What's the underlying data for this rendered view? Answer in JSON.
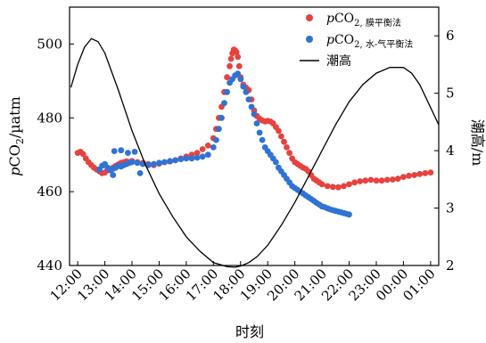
{
  "chart_data": {
    "type": "scatter",
    "xlabel": "时刻",
    "ylabel_left": "pCO2/µatm",
    "ylabel_right": "潮高/m",
    "ylim_left": [
      440,
      510
    ],
    "yticks_left": [
      440,
      460,
      480,
      500
    ],
    "ylim_right": [
      2,
      6.5
    ],
    "yticks_right": [
      2,
      3,
      4,
      5,
      6
    ],
    "xlim": [
      11.7,
      25.3
    ],
    "x_ticks": [
      12,
      13,
      14,
      15,
      16,
      17,
      18,
      19,
      20,
      21,
      22,
      23,
      24,
      25
    ],
    "x_tick_labels": [
      "12:00",
      "13:00",
      "14:00",
      "15:00",
      "16:00",
      "17:00",
      "18:00",
      "19:00",
      "20:00",
      "21:00",
      "22:00",
      "23:00",
      "00:00",
      "01:00"
    ],
    "legend_position": "top-right",
    "series": [
      {
        "name": "pCO2, 膜平衡法",
        "legend_main": "pCO",
        "legend_sub": "2, 膜平衡法",
        "kind": "scatter",
        "color": "#e8423f",
        "x": [
          12.0,
          12.1,
          12.2,
          12.3,
          12.4,
          12.5,
          12.6,
          12.7,
          12.8,
          12.9,
          13.0,
          13.1,
          13.2,
          13.3,
          13.4,
          13.5,
          13.6,
          13.7,
          13.8,
          13.9,
          14.0,
          14.2,
          14.4,
          14.6,
          14.8,
          15.0,
          15.2,
          15.4,
          15.6,
          15.8,
          16.0,
          16.2,
          16.4,
          16.6,
          16.8,
          17.0,
          17.1,
          17.2,
          17.3,
          17.4,
          17.5,
          17.6,
          17.65,
          17.7,
          17.75,
          17.8,
          17.85,
          17.9,
          17.95,
          18.0,
          18.1,
          18.2,
          18.3,
          18.4,
          18.5,
          18.6,
          18.7,
          18.8,
          18.9,
          19.0,
          19.1,
          19.2,
          19.3,
          19.4,
          19.5,
          19.6,
          19.7,
          19.8,
          19.9,
          20.0,
          20.1,
          20.2,
          20.3,
          20.4,
          20.5,
          20.6,
          20.7,
          20.8,
          20.9,
          21.0,
          21.2,
          21.4,
          21.6,
          21.8,
          22.0,
          22.2,
          22.4,
          22.6,
          22.8,
          23.0,
          23.2,
          23.4,
          23.6,
          23.8,
          24.0,
          24.2,
          24.4,
          24.6,
          24.8,
          25.0
        ],
        "y": [
          470.5,
          470.8,
          470.2,
          469.0,
          468.0,
          467.2,
          466.5,
          466.0,
          465.5,
          465.0,
          465.2,
          465.8,
          466.0,
          466.5,
          467.0,
          467.4,
          467.8,
          468.0,
          468.2,
          468.0,
          468.3,
          468.0,
          467.8,
          467.5,
          467.2,
          467.6,
          468.0,
          468.2,
          468.5,
          469.0,
          469.5,
          470.0,
          470.5,
          471.5,
          472.5,
          474.5,
          477.0,
          480.0,
          483.0,
          487.0,
          491.0,
          494.0,
          496.0,
          497.5,
          498.5,
          498.3,
          497.8,
          496.5,
          494.0,
          491.0,
          489.0,
          488.2,
          487.5,
          485.0,
          482.0,
          480.5,
          479.8,
          479.3,
          479.0,
          479.2,
          479.0,
          478.5,
          477.5,
          476.5,
          475.0,
          473.5,
          472.0,
          470.5,
          469.0,
          468.0,
          467.5,
          467.0,
          466.5,
          466.2,
          465.5,
          464.5,
          463.5,
          463.0,
          462.5,
          462.0,
          461.5,
          461.3,
          461.2,
          461.5,
          462.0,
          462.5,
          462.8,
          463.0,
          463.2,
          463.0,
          463.0,
          463.2,
          463.3,
          463.5,
          464.0,
          464.3,
          464.5,
          464.8,
          465.0,
          465.2
        ]
      },
      {
        "name": "pCO2, 水-气平衡法",
        "legend_main": "pCO",
        "legend_sub": "2, 水-气平衡法",
        "kind": "scatter",
        "color": "#2f73d4",
        "x": [
          12.8,
          12.9,
          13.0,
          13.1,
          13.2,
          13.3,
          13.4,
          13.5,
          13.6,
          13.7,
          13.8,
          13.9,
          14.0,
          14.2,
          14.4,
          14.6,
          14.8,
          15.0,
          15.2,
          15.4,
          15.6,
          15.8,
          16.0,
          16.2,
          16.4,
          16.6,
          16.8,
          17.0,
          17.1,
          17.2,
          17.3,
          17.4,
          17.5,
          17.6,
          17.7,
          17.8,
          17.9,
          18.0,
          18.1,
          18.2,
          18.3,
          18.4,
          18.5,
          18.6,
          18.7,
          18.8,
          18.9,
          19.0,
          19.1,
          19.2,
          19.3,
          19.4,
          19.5,
          19.6,
          19.7,
          19.8,
          19.9,
          20.0,
          20.1,
          20.2,
          20.3,
          20.4,
          20.5,
          20.6,
          20.7,
          20.8,
          20.9,
          21.0,
          21.1,
          21.2,
          21.3,
          21.4,
          21.5,
          21.6,
          21.7,
          21.8,
          21.9,
          22.0,
          13.35,
          13.6,
          13.85,
          14.1,
          13.3,
          14.3
        ],
        "y": [
          466.0,
          467.0,
          467.5,
          466.5,
          465.8,
          466.2,
          466.5,
          467.0,
          466.8,
          467.2,
          467.5,
          467.8,
          468.0,
          467.8,
          467.5,
          467.2,
          467.5,
          467.8,
          468.0,
          468.3,
          468.5,
          468.8,
          469.0,
          469.0,
          469.2,
          469.5,
          470.0,
          472.0,
          474.0,
          477.0,
          480.0,
          484.0,
          487.0,
          489.5,
          490.5,
          491.5,
          492.0,
          490.5,
          488.5,
          487.0,
          485.0,
          483.0,
          481.0,
          478.5,
          476.0,
          474.0,
          472.0,
          471.0,
          470.0,
          469.0,
          468.0,
          466.5,
          465.5,
          464.5,
          463.5,
          462.5,
          461.5,
          461.0,
          460.5,
          460.0,
          459.5,
          459.0,
          458.5,
          458.0,
          457.5,
          457.0,
          456.5,
          456.0,
          455.8,
          455.5,
          455.2,
          455.0,
          454.8,
          454.6,
          454.4,
          454.2,
          454.0,
          453.8,
          471.0,
          471.2,
          470.5,
          470.8,
          464.5,
          465.0
        ]
      },
      {
        "name": "潮高",
        "legend_main": "潮高",
        "legend_sub": "",
        "kind": "line",
        "axis": "right",
        "color": "#000000",
        "x": [
          11.75,
          12.0,
          12.25,
          12.5,
          12.75,
          13.0,
          13.5,
          14.0,
          14.5,
          15.0,
          15.5,
          16.0,
          16.5,
          17.0,
          17.5,
          17.8,
          18.0,
          18.3,
          18.6,
          19.0,
          19.5,
          20.0,
          20.5,
          21.0,
          21.5,
          22.0,
          22.5,
          23.0,
          23.5,
          24.0,
          24.3,
          24.6,
          25.0,
          25.3
        ],
        "y": [
          5.1,
          5.5,
          5.8,
          5.95,
          5.9,
          5.7,
          5.05,
          4.35,
          3.75,
          3.25,
          2.85,
          2.5,
          2.25,
          2.05,
          1.98,
          1.97,
          1.99,
          2.05,
          2.15,
          2.35,
          2.7,
          3.1,
          3.55,
          4.0,
          4.45,
          4.85,
          5.15,
          5.35,
          5.45,
          5.45,
          5.35,
          5.15,
          4.75,
          4.45
        ]
      }
    ]
  }
}
